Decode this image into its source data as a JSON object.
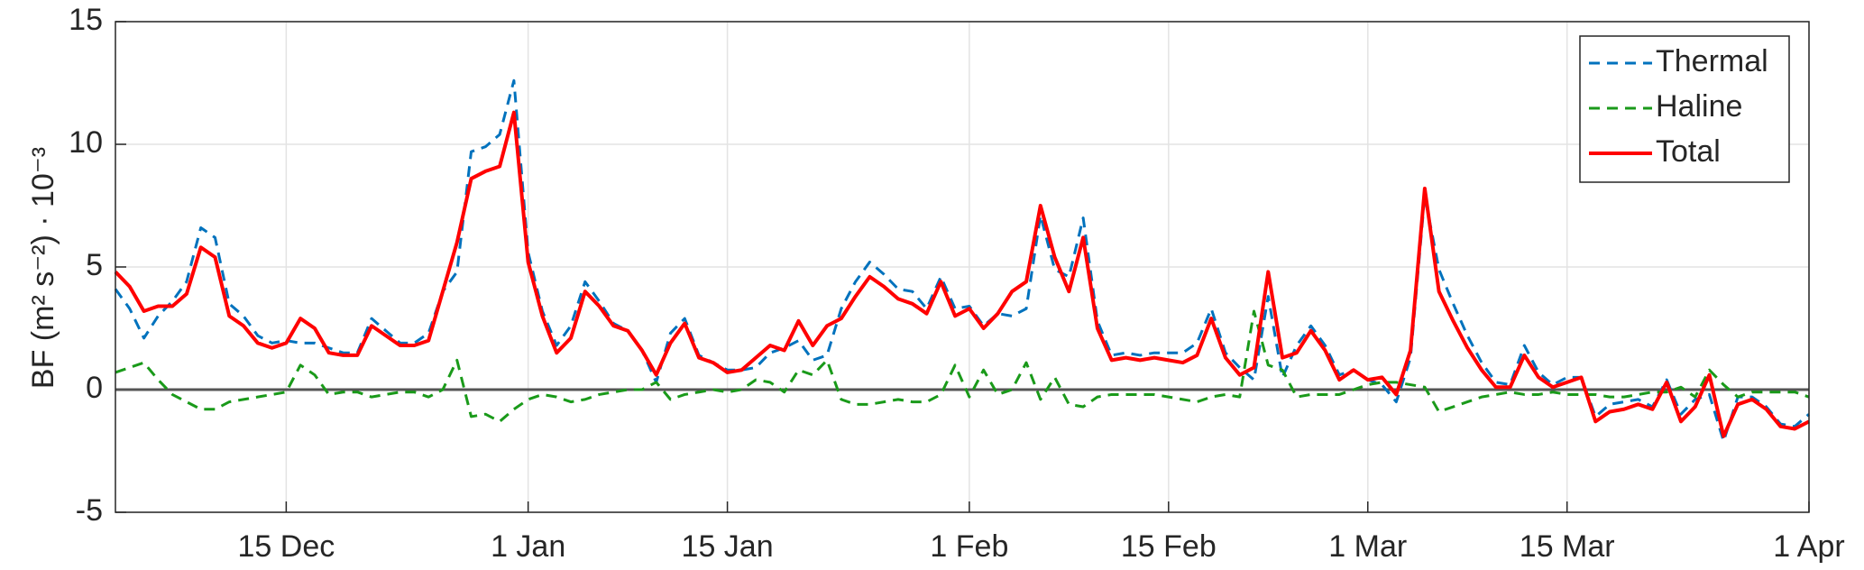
{
  "chart_data": {
    "type": "line",
    "ylabel": "BF (m² s⁻²) · 10⁻³",
    "x": [
      0,
      1,
      2,
      3,
      4,
      5,
      6,
      7,
      8,
      9,
      10,
      11,
      12,
      13,
      14,
      15,
      16,
      17,
      18,
      19,
      20,
      21,
      22,
      23,
      24,
      25,
      26,
      27,
      28,
      29,
      30,
      31,
      32,
      33,
      34,
      35,
      36,
      37,
      38,
      39,
      40,
      41,
      42,
      43,
      44,
      45,
      46,
      47,
      48,
      49,
      50,
      51,
      52,
      53,
      54,
      55,
      56,
      57,
      58,
      59,
      60,
      61,
      62,
      63,
      64,
      65,
      66,
      67,
      68,
      69,
      70,
      71,
      72,
      73,
      74,
      75,
      76,
      77,
      78,
      79,
      80,
      81,
      82,
      83,
      84,
      85,
      86,
      87,
      88,
      89,
      90,
      91,
      92,
      93,
      94,
      95,
      96,
      97,
      98,
      99,
      100,
      101,
      102,
      103,
      104,
      105,
      106,
      107,
      108,
      109,
      110,
      111,
      112,
      113,
      114,
      115,
      116,
      117,
      118,
      119
    ],
    "series": [
      {
        "name": "Thermal",
        "color": "#0072bd",
        "dash": true,
        "values": [
          4.1,
          3.3,
          2.1,
          3.0,
          3.6,
          4.4,
          6.6,
          6.2,
          3.5,
          3.0,
          2.2,
          1.9,
          2.0,
          1.9,
          1.9,
          1.7,
          1.5,
          1.5,
          2.9,
          2.4,
          1.9,
          1.9,
          2.3,
          4.0,
          4.8,
          9.7,
          9.9,
          10.4,
          12.6,
          5.6,
          3.2,
          1.8,
          2.6,
          4.4,
          3.6,
          2.7,
          2.4,
          1.6,
          0.3,
          2.3,
          2.9,
          1.4,
          1.1,
          0.8,
          0.8,
          0.9,
          1.5,
          1.7,
          2.0,
          1.2,
          1.4,
          3.3,
          4.4,
          5.2,
          4.7,
          4.1,
          4.0,
          3.3,
          4.6,
          3.3,
          3.4,
          2.6,
          3.1,
          3.0,
          3.3,
          7.1,
          4.9,
          4.6,
          7.0,
          2.8,
          1.4,
          1.5,
          1.4,
          1.5,
          1.5,
          1.5,
          1.9,
          3.3,
          1.5,
          0.9,
          0.4,
          3.8,
          0.5,
          1.8,
          2.6,
          1.8,
          0.6,
          0.8,
          0.4,
          0.2,
          -0.5,
          1.3,
          7.9,
          4.9,
          3.5,
          2.2,
          1.1,
          0.3,
          0.2,
          1.8,
          0.7,
          0.2,
          0.5,
          0.5,
          -1.1,
          -0.6,
          -0.5,
          -0.4,
          -0.7,
          0.4,
          -1.0,
          -0.4,
          -0.2,
          -2.1,
          -0.3,
          -0.3,
          -0.7,
          -1.4,
          -1.5,
          -1.0
        ]
      },
      {
        "name": "Haline",
        "color": "#1a9a1a",
        "dash": true,
        "values": [
          0.7,
          0.9,
          1.1,
          0.4,
          -0.2,
          -0.5,
          -0.8,
          -0.8,
          -0.5,
          -0.4,
          -0.3,
          -0.2,
          -0.1,
          1.0,
          0.6,
          -0.2,
          -0.1,
          -0.1,
          -0.3,
          -0.2,
          -0.1,
          -0.1,
          -0.3,
          0.0,
          1.2,
          -1.1,
          -1.0,
          -1.3,
          -0.8,
          -0.4,
          -0.2,
          -0.3,
          -0.5,
          -0.4,
          -0.2,
          -0.1,
          0.0,
          0.0,
          0.3,
          -0.4,
          -0.2,
          -0.1,
          0.0,
          -0.1,
          0.0,
          0.4,
          0.3,
          -0.1,
          0.8,
          0.6,
          1.2,
          -0.4,
          -0.6,
          -0.6,
          -0.5,
          -0.4,
          -0.5,
          -0.5,
          -0.2,
          1.0,
          -0.3,
          0.8,
          -0.2,
          0.0,
          1.1,
          -0.4,
          0.5,
          -0.6,
          -0.7,
          -0.3,
          -0.2,
          -0.2,
          -0.2,
          -0.2,
          -0.3,
          -0.4,
          -0.5,
          -0.3,
          -0.2,
          -0.3,
          3.2,
          1.0,
          0.8,
          -0.3,
          -0.2,
          -0.2,
          -0.2,
          0.0,
          0.2,
          0.3,
          0.3,
          0.2,
          0.1,
          -0.9,
          -0.7,
          -0.5,
          -0.3,
          -0.2,
          -0.1,
          -0.2,
          -0.2,
          -0.1,
          -0.2,
          -0.2,
          -0.2,
          -0.3,
          -0.3,
          -0.2,
          -0.1,
          -0.1,
          0.1,
          -0.3,
          0.8,
          0.2,
          -0.3,
          -0.1,
          -0.1,
          -0.1,
          -0.1,
          -0.3
        ]
      },
      {
        "name": "Total",
        "color": "#ff0000",
        "dash": false,
        "values": [
          4.8,
          4.2,
          3.2,
          3.4,
          3.4,
          3.9,
          5.8,
          5.4,
          3.0,
          2.6,
          1.9,
          1.7,
          1.9,
          2.9,
          2.5,
          1.5,
          1.4,
          1.4,
          2.6,
          2.2,
          1.8,
          1.8,
          2.0,
          4.0,
          6.0,
          8.6,
          8.9,
          9.1,
          11.3,
          5.2,
          3.0,
          1.5,
          2.1,
          4.0,
          3.4,
          2.6,
          2.4,
          1.6,
          0.6,
          1.9,
          2.7,
          1.3,
          1.1,
          0.7,
          0.8,
          1.3,
          1.8,
          1.6,
          2.8,
          1.8,
          2.6,
          2.9,
          3.8,
          4.6,
          4.2,
          3.7,
          3.5,
          3.1,
          4.4,
          3.0,
          3.3,
          2.5,
          3.1,
          4.0,
          4.4,
          7.5,
          5.4,
          4.0,
          6.2,
          2.5,
          1.2,
          1.3,
          1.2,
          1.3,
          1.2,
          1.1,
          1.4,
          2.9,
          1.3,
          0.6,
          0.9,
          4.8,
          1.3,
          1.5,
          2.4,
          1.6,
          0.4,
          0.8,
          0.4,
          0.5,
          -0.2,
          1.6,
          8.2,
          4.0,
          2.8,
          1.7,
          0.8,
          0.1,
          0.1,
          1.4,
          0.5,
          0.1,
          0.3,
          0.5,
          -1.3,
          -0.9,
          -0.8,
          -0.6,
          -0.8,
          0.3,
          -1.3,
          -0.7,
          0.6,
          -1.9,
          -0.6,
          -0.4,
          -0.8,
          -1.5,
          -1.6,
          -1.3
        ]
      }
    ],
    "xlim": [
      0,
      119
    ],
    "xticks": [
      {
        "value": 12,
        "label": "15 Dec"
      },
      {
        "value": 29,
        "label": "1 Jan"
      },
      {
        "value": 43,
        "label": "15 Jan"
      },
      {
        "value": 60,
        "label": "1 Feb"
      },
      {
        "value": 74,
        "label": "15 Feb"
      },
      {
        "value": 88,
        "label": "1 Mar"
      },
      {
        "value": 102,
        "label": "15 Mar"
      },
      {
        "value": 119,
        "label": "1 Apr"
      }
    ],
    "ylim": [
      -5,
      15
    ],
    "yticks": [
      -5,
      0,
      5,
      10,
      15
    ],
    "grid": true,
    "zero_line": true,
    "legend": "upper-right"
  }
}
